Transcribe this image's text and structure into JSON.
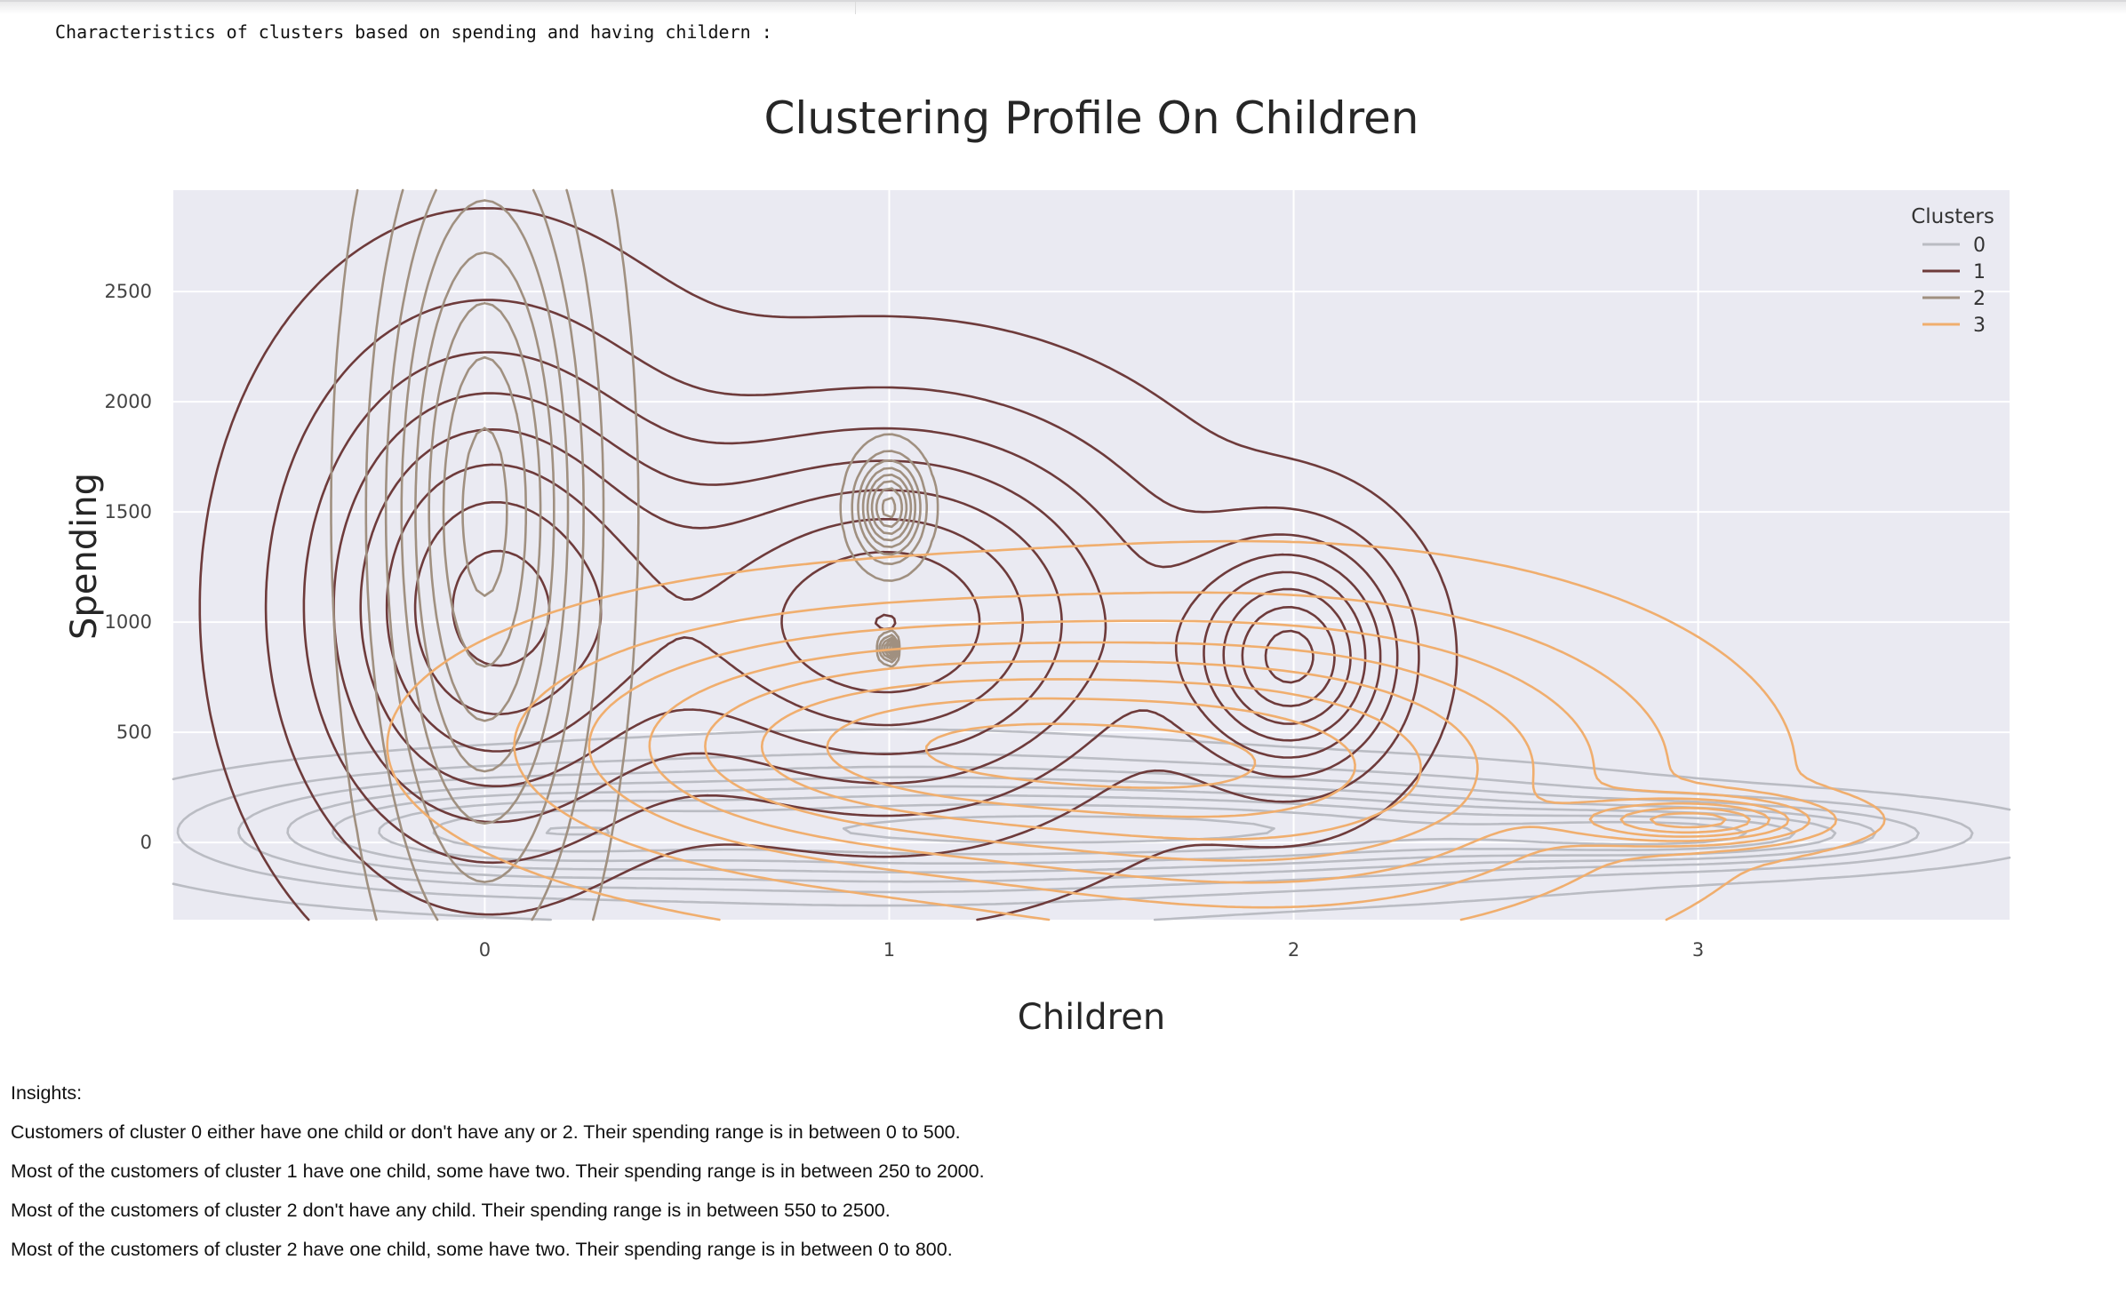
{
  "output_text": "Characteristics of clusters based on spending and having childern :",
  "chart_data": {
    "type": "kde-contour",
    "title": "Clustering Profile On Children",
    "xlabel": "Children",
    "ylabel": "Spending",
    "x_ticks": [
      "0",
      "1",
      "2",
      "3"
    ],
    "y_ticks": [
      "0",
      "500",
      "1000",
      "1500",
      "2000",
      "2500"
    ],
    "xlim": [
      -0.77,
      3.77
    ],
    "ylim": [
      -350,
      2960
    ],
    "grid": true,
    "legend": {
      "title": "Clusters",
      "placement": "top-right"
    },
    "series": [
      {
        "name": "0",
        "color": "#babcc3",
        "components": [
          {
            "x": 0,
            "y": 50,
            "sx": 0.45,
            "sy": 160
          },
          {
            "x": 1,
            "y": 60,
            "sx": 0.55,
            "sy": 200
          },
          {
            "x": 2,
            "y": 60,
            "sx": 0.55,
            "sy": 150
          },
          {
            "x": 3,
            "y": 40,
            "sx": 0.4,
            "sy": 90
          }
        ]
      },
      {
        "name": "1",
        "color": "#6e3b3b",
        "components": [
          {
            "x": 0,
            "y": 1070,
            "sx": 0.3,
            "sy": 770
          },
          {
            "x": 1,
            "y": 1000,
            "sx": 0.42,
            "sy": 590
          },
          {
            "x": 2,
            "y": 840,
            "sx": 0.17,
            "sy": 350
          }
        ]
      },
      {
        "name": "2",
        "color": "#a09080",
        "components": [
          {
            "x": 0,
            "y": 1500,
            "sx": 0.16,
            "sy": 1100
          },
          {
            "x": 1,
            "y": 1520,
            "sx": 0.05,
            "sy": 140
          },
          {
            "x": 1,
            "y": 880,
            "sx": 0.01,
            "sy": 35
          }
        ]
      },
      {
        "name": "3",
        "color": "#f0ae6e",
        "components": [
          {
            "x": 1,
            "y": 440,
            "sx": 0.55,
            "sy": 360
          },
          {
            "x": 2,
            "y": 330,
            "sx": 0.55,
            "sy": 450
          },
          {
            "x": 3,
            "y": 100,
            "sx": 0.19,
            "sy": 70
          }
        ]
      }
    ]
  },
  "insights": {
    "heading": "Insights:",
    "lines": [
      "Customers of cluster 0 either have one child or don't have any or 2. Their spending range is in between 0 to 500.",
      "Most of the customers of cluster 1 have one child, some have two. Their spending range is in between 250 to 2000.",
      "Most of the customers of cluster 2 don't have any child. Their spending range is in between 550 to 2500.",
      "Most of the customers of cluster 2 have one child, some have two. Their spending range is in between 0 to 800."
    ]
  }
}
